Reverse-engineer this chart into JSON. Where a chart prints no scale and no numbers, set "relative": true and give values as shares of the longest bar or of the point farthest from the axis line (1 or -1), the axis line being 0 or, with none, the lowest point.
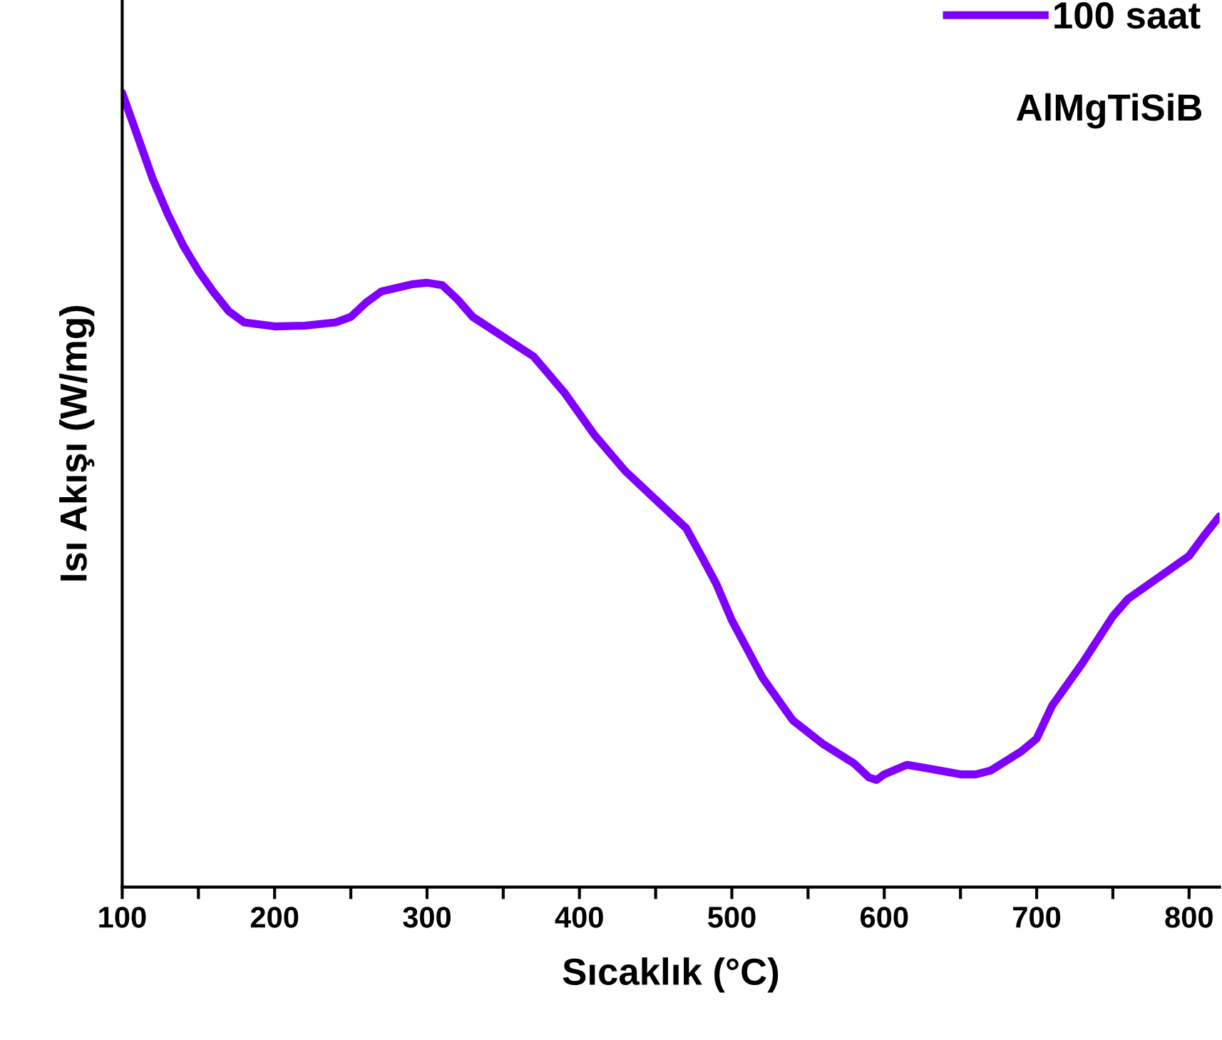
{
  "chart_data": {
    "type": "line",
    "relative": true,
    "xlabel": "Sıcaklık (°C)",
    "ylabel": "Isı Akışı (W/mg)",
    "xlim": [
      100,
      820
    ],
    "xticks": [
      100,
      {
        "value": 150,
        "label": null
      },
      200,
      {
        "value": 250,
        "label": null
      },
      300,
      {
        "value": 350,
        "label": null
      },
      400,
      {
        "value": 450,
        "label": null
      },
      500,
      {
        "value": 550,
        "label": null
      },
      600,
      {
        "value": 650,
        "label": null
      },
      700,
      {
        "value": 750,
        "label": null
      },
      800
    ],
    "legend": "top right",
    "grid": false,
    "marker": "none",
    "line_style": "solid",
    "tick_labels": "x",
    "annotations": [
      "AlMgTiSiB"
    ],
    "series": [
      {
        "name": "100 saat",
        "color": "#8000ff",
        "x": [
          100,
          110,
          120,
          130,
          140,
          150,
          160,
          170,
          180,
          200,
          220,
          240,
          250,
          260,
          270,
          290,
          300,
          310,
          320,
          330,
          350,
          370,
          390,
          410,
          430,
          450,
          470,
          480,
          490,
          500,
          520,
          540,
          560,
          580,
          590,
          595,
          600,
          615,
          630,
          650,
          660,
          670,
          690,
          700,
          710,
          730,
          750,
          760,
          780,
          800,
          810,
          820
        ],
        "values": [
          1.0,
          0.946,
          0.892,
          0.847,
          0.808,
          0.776,
          0.749,
          0.725,
          0.711,
          0.706,
          0.707,
          0.711,
          0.718,
          0.736,
          0.75,
          0.759,
          0.761,
          0.758,
          0.74,
          0.718,
          0.693,
          0.668,
          0.623,
          0.569,
          0.524,
          0.488,
          0.452,
          0.417,
          0.381,
          0.336,
          0.264,
          0.21,
          0.18,
          0.156,
          0.138,
          0.135,
          0.142,
          0.154,
          0.149,
          0.142,
          0.142,
          0.147,
          0.171,
          0.187,
          0.228,
          0.282,
          0.341,
          0.363,
          0.39,
          0.417,
          0.443,
          0.467
        ]
      }
    ]
  }
}
